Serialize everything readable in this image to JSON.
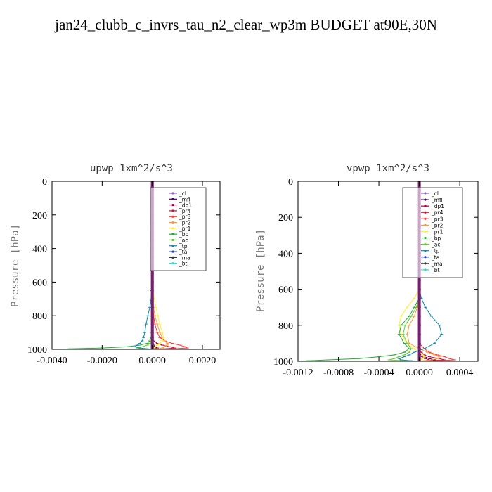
{
  "page": {
    "title": "jan24_clubb_c_invrs_tau_n2_clear_wp3m  BUDGET at90E,30N"
  },
  "legend_entries": [
    {
      "name": "_cl",
      "color": "#9966cc"
    },
    {
      "name": "_mfl",
      "color": "#4b0052"
    },
    {
      "name": "_dp1",
      "color": "#aa0044"
    },
    {
      "name": "_pr4",
      "color": "#cc1133"
    },
    {
      "name": "_pr3",
      "color": "#ff3333"
    },
    {
      "name": "_pr2",
      "color": "#ff9933"
    },
    {
      "name": "_pr1",
      "color": "#ffee33"
    },
    {
      "name": "_bp",
      "color": "#22aa33"
    },
    {
      "name": "_ac",
      "color": "#66cc33"
    },
    {
      "name": "_tp",
      "color": "#1188aa"
    },
    {
      "name": "_ta",
      "color": "#2244dd"
    },
    {
      "name": "_ma",
      "color": "#333333"
    },
    {
      "name": "_bt",
      "color": "#22dddd"
    }
  ],
  "chart_data": [
    {
      "type": "line",
      "title": "upwp   1xm^2/s^3",
      "ylabel": "Pressure [hPa]",
      "xlim": [
        -0.004,
        0.0027
      ],
      "ylim": [
        1000,
        0
      ],
      "xticks": [
        "-0.0040",
        "-0.0020",
        "0.0000",
        "0.0020"
      ],
      "xtick_values": [
        -0.004,
        -0.002,
        0.0,
        0.002
      ],
      "yticks": [
        "0",
        "200",
        "400",
        "600",
        "800",
        "1000"
      ],
      "ytick_values": [
        0,
        200,
        400,
        600,
        800,
        1000
      ],
      "pressure_levels": [
        0,
        50,
        100,
        150,
        200,
        250,
        300,
        350,
        400,
        450,
        500,
        550,
        600,
        650,
        700,
        750,
        800,
        850,
        900,
        930,
        950,
        965,
        975,
        985,
        992,
        997,
        1000
      ],
      "series": [
        {
          "name": "_cl",
          "color": "#9966cc",
          "values": [
            0,
            0,
            0,
            0,
            0,
            0,
            0,
            0,
            0,
            0,
            0,
            0,
            0,
            0,
            0,
            0,
            0,
            0,
            0,
            0,
            0,
            0,
            0,
            0,
            0,
            0,
            0
          ]
        },
        {
          "name": "_mfl",
          "color": "#4b0052",
          "values": [
            0,
            0,
            0,
            0,
            0,
            0,
            0,
            0,
            0,
            0,
            0,
            0,
            0,
            0,
            0,
            0,
            0,
            0,
            0,
            0,
            0,
            0,
            5e-05,
            0.0001,
            0.0002,
            0.0001,
            0
          ]
        },
        {
          "name": "_dp1",
          "color": "#aa0044",
          "values": [
            0,
            0,
            0,
            0,
            0,
            0,
            0,
            0,
            0,
            0,
            0,
            0,
            0,
            0,
            0,
            0,
            0,
            0,
            0,
            0,
            0,
            0,
            0,
            0.0001,
            0.0002,
            0.0001,
            0
          ]
        },
        {
          "name": "_pr4",
          "color": "#cc1133",
          "values": [
            0,
            0,
            0,
            0,
            0,
            0,
            0,
            0,
            0,
            0,
            0,
            0,
            0,
            0,
            0,
            0,
            0,
            0,
            0,
            0,
            5e-05,
            0.0002,
            0.0004,
            0.0007,
            0.0009,
            0.0005,
            0
          ]
        },
        {
          "name": "_pr3",
          "color": "#ff3333",
          "values": [
            0,
            0,
            0,
            0,
            0,
            0,
            0,
            0,
            0,
            0,
            0,
            0,
            0,
            0,
            0,
            2e-05,
            5e-05,
            0.0001,
            0.0002,
            0.0003,
            0.0005,
            0.0008,
            0.0011,
            0.0013,
            0.0014,
            0.0008,
            0
          ]
        },
        {
          "name": "_pr2",
          "color": "#ff9933",
          "values": [
            0,
            0,
            0,
            0,
            0,
            0,
            0,
            0,
            0,
            0,
            0,
            0,
            0,
            0,
            2e-05,
            5e-05,
            0.0001,
            0.0002,
            0.0003,
            0.0004,
            0.0005,
            0.0006,
            0.0006,
            0.0005,
            0.0004,
            0.0002,
            0
          ]
        },
        {
          "name": "_pr1",
          "color": "#ffee33",
          "values": [
            0,
            0,
            0,
            0,
            0,
            0,
            0,
            0,
            0,
            0,
            0,
            0,
            0,
            3e-05,
            8e-05,
            0.00015,
            0.00022,
            0.0003,
            0.0004,
            0.00045,
            0.0004,
            0.0003,
            0.0002,
            0.0001,
            5e-05,
            0,
            0
          ]
        },
        {
          "name": "_bp",
          "color": "#22aa33",
          "values": [
            0,
            0,
            0,
            0,
            0,
            0,
            0,
            0,
            0,
            0,
            0,
            0,
            0,
            0,
            0,
            0,
            0,
            0,
            -2e-05,
            -5e-05,
            -0.0001,
            -0.0002,
            -0.0005,
            -0.001,
            -0.002,
            -0.0033,
            -0.0036
          ]
        },
        {
          "name": "_ac",
          "color": "#66cc33",
          "values": [
            0,
            0,
            0,
            0,
            0,
            0,
            0,
            0,
            0,
            0,
            0,
            0,
            0,
            0,
            0,
            0,
            0,
            0,
            0,
            0,
            -5e-05,
            -0.0001,
            -0.0002,
            -0.0004,
            -0.0006,
            -0.0003,
            0
          ]
        },
        {
          "name": "_tp",
          "color": "#1188aa",
          "values": [
            0,
            0,
            0,
            0,
            0,
            0,
            0,
            0,
            0,
            0,
            0,
            0,
            0,
            -2e-05,
            -5e-05,
            -0.0001,
            -0.00018,
            -0.00025,
            -0.0003,
            -0.00035,
            -0.0004,
            -0.0005,
            -0.0006,
            -0.0007,
            -0.0005,
            -0.0002,
            0
          ]
        },
        {
          "name": "_ta",
          "color": "#2244dd",
          "values": [
            0,
            0,
            0,
            0,
            0,
            0,
            0,
            0,
            0,
            0,
            0,
            0,
            0,
            0,
            0,
            0,
            0,
            0,
            0,
            0,
            0,
            0,
            0,
            0,
            0,
            0,
            0
          ]
        },
        {
          "name": "_ma",
          "color": "#333333",
          "values": [
            0,
            0,
            0,
            0,
            0,
            0,
            0,
            0,
            0,
            0,
            0,
            0,
            0,
            0,
            0,
            0,
            0,
            0,
            0,
            0,
            0,
            0,
            0,
            0,
            0,
            0,
            0
          ]
        },
        {
          "name": "_bt",
          "color": "#22dddd",
          "values": [
            0,
            0,
            0,
            0,
            0,
            0,
            0,
            0,
            0,
            0,
            0,
            0,
            0,
            0,
            0,
            0,
            0,
            0,
            0,
            0,
            0,
            0,
            0,
            0,
            0,
            0,
            0
          ]
        }
      ]
    },
    {
      "type": "line",
      "title": "vpwp   1xm^2/s^3",
      "ylabel": "Pressure [hPa]",
      "xlim": [
        -0.0012,
        0.00058
      ],
      "ylim": [
        1000,
        0
      ],
      "xticks": [
        "-0.0012",
        "-0.0008",
        "-0.0004",
        "0.0000",
        "0.0004"
      ],
      "xtick_values": [
        -0.0012,
        -0.0008,
        -0.0004,
        0.0,
        0.0004
      ],
      "yticks": [
        "0",
        "200",
        "400",
        "600",
        "800",
        "1000"
      ],
      "ytick_values": [
        0,
        200,
        400,
        600,
        800,
        1000
      ],
      "pressure_levels": [
        0,
        50,
        100,
        150,
        200,
        250,
        300,
        350,
        400,
        450,
        500,
        550,
        600,
        650,
        700,
        750,
        800,
        850,
        900,
        930,
        950,
        965,
        975,
        985,
        992,
        997,
        1000
      ],
      "series": [
        {
          "name": "_cl",
          "color": "#9966cc",
          "values": [
            0,
            0,
            0,
            0,
            0,
            0,
            0,
            0,
            0,
            0,
            0,
            0,
            0,
            0,
            0,
            0,
            0,
            0,
            0,
            0,
            0,
            0,
            0,
            0,
            0,
            0,
            0
          ]
        },
        {
          "name": "_mfl",
          "color": "#4b0052",
          "values": [
            0,
            0,
            0,
            0,
            0,
            0,
            0,
            0,
            0,
            0,
            0,
            0,
            0,
            0,
            0,
            0,
            0,
            0,
            0,
            0,
            0,
            2e-05,
            5e-05,
            0.0001,
            0.00015,
            8e-05,
            0
          ]
        },
        {
          "name": "_dp1",
          "color": "#aa0044",
          "values": [
            0,
            0,
            0,
            0,
            0,
            0,
            0,
            0,
            0,
            0,
            0,
            0,
            0,
            0,
            0,
            0,
            0,
            0,
            0,
            0,
            0,
            0,
            3e-05,
            6e-05,
            0.0001,
            5e-05,
            0
          ]
        },
        {
          "name": "_pr4",
          "color": "#cc1133",
          "values": [
            0,
            0,
            0,
            0,
            0,
            0,
            0,
            0,
            0,
            0,
            0,
            0,
            0,
            0,
            0,
            0,
            0,
            0,
            0,
            0,
            2e-05,
            5e-05,
            0.0001,
            0.0002,
            0.00025,
            0.0001,
            0
          ]
        },
        {
          "name": "_pr3",
          "color": "#ff3333",
          "values": [
            0,
            0,
            0,
            0,
            0,
            0,
            0,
            0,
            0,
            0,
            0,
            0,
            0,
            0,
            0,
            0,
            0,
            0,
            0,
            5e-05,
            0.0001,
            0.00018,
            0.00025,
            0.0003,
            0.00035,
            0.0002,
            0
          ]
        },
        {
          "name": "_pr2",
          "color": "#ff9933",
          "values": [
            0,
            0,
            0,
            0,
            0,
            0,
            0,
            0,
            0,
            0,
            0,
            0,
            0,
            0,
            -2e-05,
            -5e-05,
            -0.0001,
            -0.00012,
            -0.0001,
            0,
            8e-05,
            0.00015,
            0.0002,
            0.00018,
            0.00012,
            5e-05,
            0
          ]
        },
        {
          "name": "_pr1",
          "color": "#ffee33",
          "values": [
            0,
            0,
            0,
            0,
            0,
            0,
            0,
            0,
            0,
            0,
            0,
            0,
            0,
            -5e-05,
            -0.00012,
            -0.00018,
            -0.0002,
            -0.00018,
            -0.00012,
            -5e-05,
            0,
            3e-05,
            5e-05,
            3e-05,
            1e-05,
            0,
            0
          ]
        },
        {
          "name": "_bp",
          "color": "#22aa33",
          "values": [
            0,
            0,
            0,
            0,
            0,
            0,
            0,
            0,
            0,
            0,
            0,
            0,
            0,
            0,
            -5e-05,
            -0.0001,
            -0.00018,
            -0.0002,
            -0.00015,
            -0.0001,
            -0.00015,
            -0.00025,
            -0.0004,
            -0.0006,
            -0.0009,
            -0.0011,
            -0.0012
          ]
        },
        {
          "name": "_ac",
          "color": "#66cc33",
          "values": [
            0,
            0,
            0,
            0,
            0,
            0,
            0,
            0,
            0,
            0,
            0,
            0,
            0,
            0,
            -3e-05,
            -8e-05,
            -0.00014,
            -0.00016,
            -0.00012,
            -8e-05,
            -0.0001,
            -0.00015,
            -0.0002,
            -0.00025,
            -0.0003,
            -0.00015,
            0
          ]
        },
        {
          "name": "_tp",
          "color": "#1188aa",
          "values": [
            0,
            0,
            0,
            0,
            0,
            0,
            0,
            0,
            0,
            0,
            0,
            0,
            0,
            2e-05,
            6e-05,
            0.00012,
            0.0002,
            0.00022,
            0.00015,
            5e-05,
            -5e-05,
            -0.0001,
            -0.00015,
            -0.0002,
            -0.00018,
            -8e-05,
            0
          ]
        },
        {
          "name": "_ta",
          "color": "#2244dd",
          "values": [
            0,
            0,
            0,
            0,
            0,
            0,
            0,
            0,
            0,
            0,
            0,
            0,
            0,
            0,
            0,
            0,
            0,
            0,
            0,
            0,
            0,
            0,
            0,
            0,
            0,
            0,
            0
          ]
        },
        {
          "name": "_ma",
          "color": "#333333",
          "values": [
            0,
            0,
            0,
            0,
            0,
            0,
            0,
            0,
            0,
            0,
            0,
            0,
            0,
            0,
            0,
            0,
            0,
            0,
            0,
            0,
            0,
            0,
            0,
            0,
            0,
            0,
            0
          ]
        },
        {
          "name": "_bt",
          "color": "#22dddd",
          "values": [
            0,
            0,
            0,
            0,
            0,
            0,
            0,
            0,
            0,
            0,
            0,
            0,
            0,
            0,
            0,
            0,
            0,
            0,
            0,
            0,
            0,
            0,
            0,
            0,
            0,
            0,
            0
          ]
        }
      ]
    }
  ]
}
